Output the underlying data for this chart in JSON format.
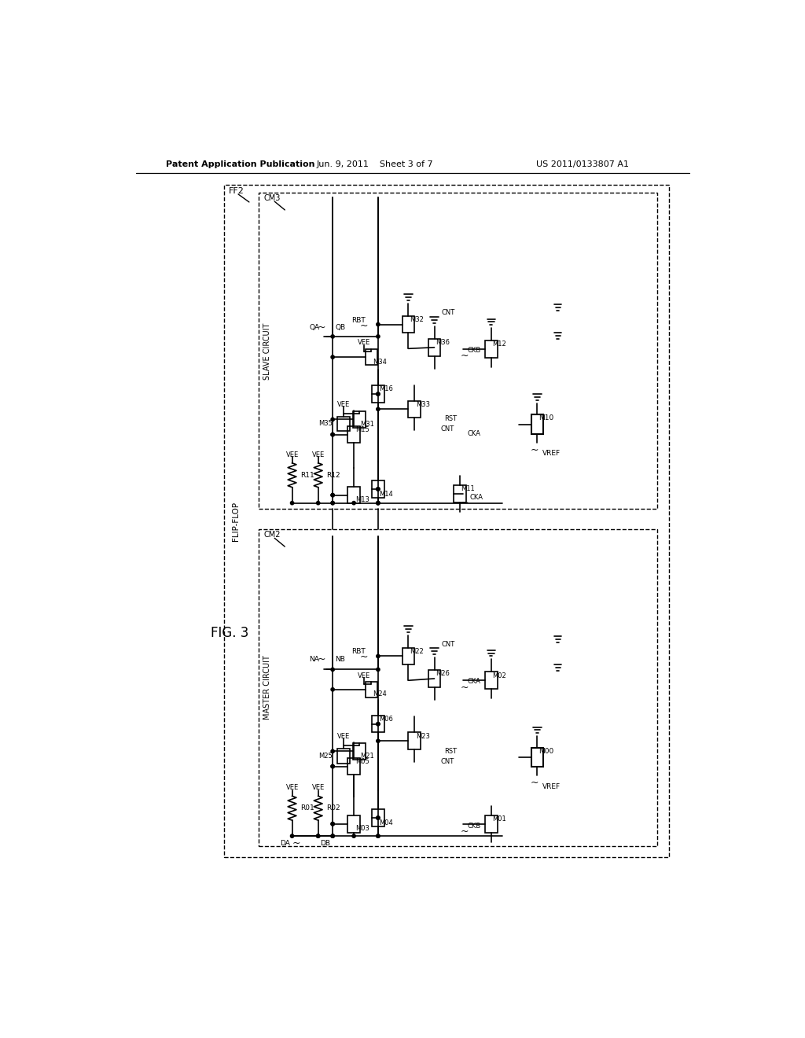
{
  "header_left": "Patent Application Publication",
  "header_center": "Jun. 9, 2011    Sheet 3 of 7",
  "header_right": "US 2011/0133807 A1",
  "fig_label": "FIG. 3",
  "bg": "#ffffff"
}
